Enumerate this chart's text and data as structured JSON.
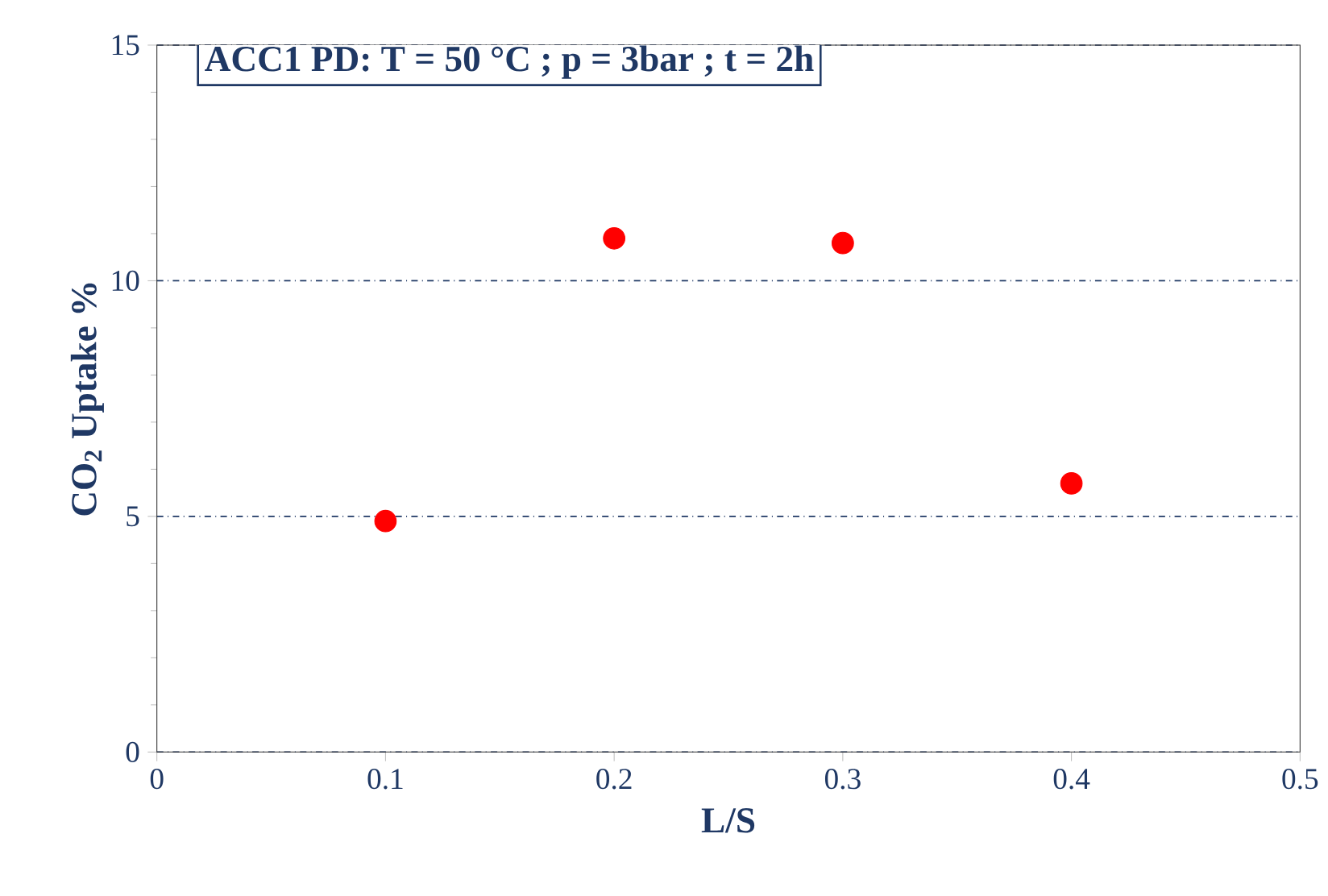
{
  "chart_data": {
    "type": "scatter",
    "title": "ACC1 PD: T = 50 °C ; p = 3bar ; t = 2h",
    "xlabel": "L/S",
    "ylabel": "CO$_{2}$ Uptake %",
    "x": [
      0.1,
      0.2,
      0.3,
      0.4
    ],
    "series": [
      {
        "color": "#ff0000",
        "values": [
          4.9,
          10.9,
          10.8,
          5.7
        ]
      }
    ],
    "xlim": [
      0,
      0.5
    ],
    "ylim": [
      0,
      15
    ],
    "xticks": [
      0,
      0.1,
      0.2,
      0.3,
      0.4,
      0.5
    ],
    "yticks": [
      0,
      5,
      10,
      15
    ],
    "grid": "y"
  }
}
